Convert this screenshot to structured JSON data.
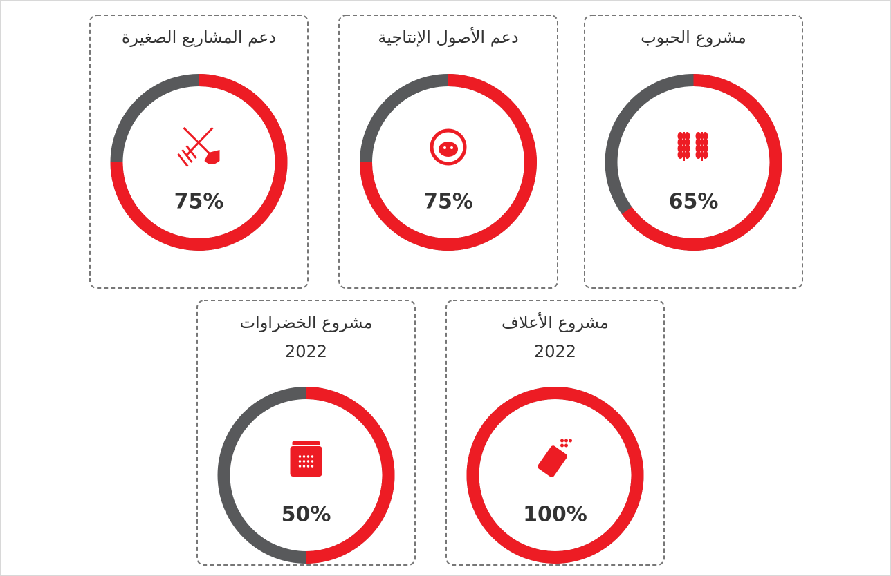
{
  "chart_data": [
    {
      "type": "gauge",
      "title": "مشروع الحبوب",
      "values": [
        65
      ],
      "value_labels": [
        "65%"
      ],
      "ylim": [
        0,
        100
      ],
      "color": "#ed1c24",
      "track_color": "#58595b"
    },
    {
      "type": "gauge",
      "title": "دعم الأصول الإنتاجية",
      "values": [
        75
      ],
      "value_labels": [
        "75%"
      ],
      "ylim": [
        0,
        100
      ],
      "color": "#ed1c24",
      "track_color": "#58595b"
    },
    {
      "type": "gauge",
      "title": "دعم المشاريع الصغيرة",
      "values": [
        75
      ],
      "value_labels": [
        "75%"
      ],
      "ylim": [
        0,
        100
      ],
      "color": "#ed1c24",
      "track_color": "#58595b"
    },
    {
      "type": "gauge",
      "title": "مشروع الأعلاف",
      "subtitle": "2022",
      "values": [
        100
      ],
      "value_labels": [
        "100%"
      ],
      "ylim": [
        0,
        100
      ],
      "color": "#ed1c24",
      "track_color": "#58595b"
    },
    {
      "type": "gauge",
      "title": "مشروع الخضراوات",
      "subtitle": "2022",
      "values": [
        50
      ],
      "value_labels": [
        "50%"
      ],
      "ylim": [
        0,
        100
      ],
      "color": "#ed1c24",
      "track_color": "#58595b"
    }
  ]
}
